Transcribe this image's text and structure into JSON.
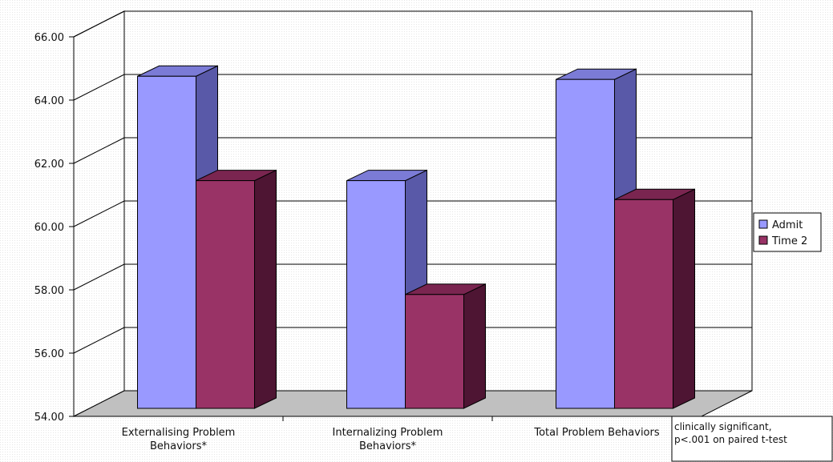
{
  "chart_data": {
    "type": "bar",
    "categories": [
      [
        "Externalising Problem",
        "Behaviors*"
      ],
      [
        "Internalizing Problem",
        "Behaviors*"
      ],
      [
        "Total Problem Behaviors"
      ]
    ],
    "series": [
      {
        "name": "Admit",
        "values": [
          64.5,
          61.2,
          64.4
        ]
      },
      {
        "name": "Time 2",
        "values": [
          61.2,
          57.6,
          60.6
        ]
      }
    ],
    "ylim": [
      54,
      66
    ],
    "yticks": [
      "54.00",
      "56.00",
      "58.00",
      "60.00",
      "62.00",
      "64.00",
      "66.00"
    ],
    "grid": true,
    "legend": "right",
    "colors": {
      "Admit_front": "#9999ff",
      "Admit_side": "#5959a8",
      "Admit_top": "#7b7bd6",
      "Time 2_front": "#993366",
      "Time 2_side": "#4e1533",
      "Time 2_top": "#7a2550",
      "floor": "#c0c0c0"
    },
    "annotation": [
      "clinically significant,",
      "p<.001 on paired t-test"
    ]
  }
}
